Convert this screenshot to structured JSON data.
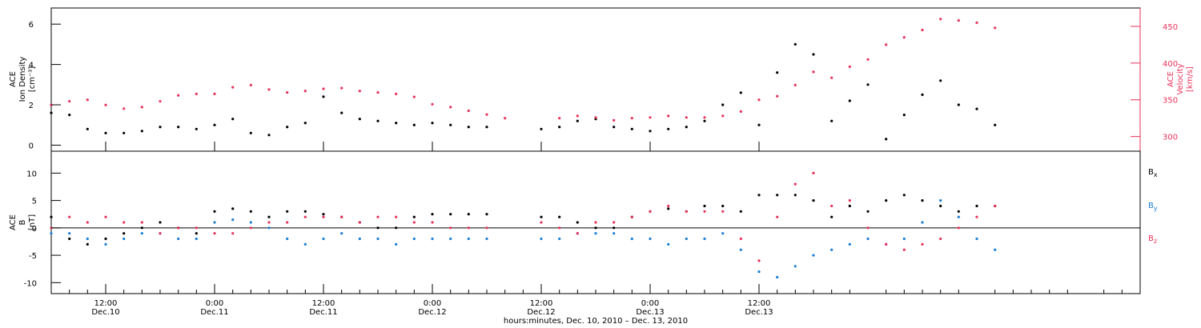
{
  "chart_data": [
    {
      "type": "scatter",
      "panel": "top",
      "ylabel_left": [
        "ACE",
        "Ion Density",
        "[cm⁻³]"
      ],
      "ylabel_right": [
        "ACE",
        "Velocity",
        "[km/s]"
      ],
      "ylim_left": [
        -0.3,
        6.8
      ],
      "yticks_left": [
        "0",
        "2",
        "4",
        "6"
      ],
      "ylim_right": [
        280,
        475
      ],
      "yticks_right": [
        "300",
        "350",
        "400",
        "450"
      ],
      "right_axis_color": "#e8325a",
      "grid": false,
      "series": [
        {
          "axis": "left",
          "color": "#000000",
          "x": [
            6,
            8,
            10,
            12,
            14,
            16,
            18,
            20,
            22,
            24,
            26,
            28,
            30,
            32,
            34,
            36,
            38,
            40,
            42,
            44,
            46,
            48,
            50,
            52,
            54,
            56,
            58,
            60,
            62,
            64,
            66,
            68,
            70,
            72,
            74,
            76,
            78,
            80,
            82,
            84,
            86,
            88,
            90,
            92,
            94,
            96,
            98,
            100,
            102,
            104,
            106,
            108,
            110
          ],
          "y": [
            1.6,
            1.5,
            0.8,
            0.6,
            0.6,
            0.7,
            0.9,
            0.9,
            0.8,
            1.0,
            1.3,
            0.6,
            0.5,
            0.9,
            1.1,
            2.4,
            1.6,
            1.3,
            1.2,
            1.1,
            1.0,
            1.1,
            1.0,
            0.9,
            0.9,
            null,
            null,
            0.8,
            0.9,
            1.2,
            1.3,
            0.9,
            0.8,
            0.7,
            0.8,
            0.9,
            1.2,
            2.0,
            2.6,
            1.0,
            3.6,
            5.0,
            4.5,
            1.2,
            2.2,
            3.0,
            0.3,
            1.5,
            2.5,
            3.2,
            2.0,
            1.8,
            1.0
          ]
        },
        {
          "axis": "right",
          "color": "#e8325a",
          "x": [
            6,
            8,
            10,
            12,
            14,
            16,
            18,
            20,
            22,
            24,
            26,
            28,
            30,
            32,
            34,
            36,
            38,
            40,
            42,
            44,
            46,
            48,
            50,
            52,
            54,
            56,
            58,
            60,
            62,
            64,
            66,
            68,
            70,
            72,
            74,
            76,
            78,
            80,
            82,
            84,
            86,
            88,
            90,
            92,
            94,
            96,
            98,
            100,
            102,
            104,
            106,
            108,
            110
          ],
          "y": [
            343,
            348,
            350,
            343,
            338,
            340,
            348,
            356,
            358,
            358,
            367,
            370,
            364,
            360,
            362,
            365,
            366,
            362,
            360,
            358,
            354,
            344,
            340,
            335,
            330,
            325,
            null,
            null,
            325,
            328,
            326,
            322,
            325,
            326,
            328,
            326,
            326,
            328,
            334,
            350,
            355,
            370,
            388,
            380,
            395,
            405,
            425,
            435,
            445,
            460,
            458,
            455,
            448
          ]
        }
      ]
    },
    {
      "type": "scatter",
      "panel": "bottom",
      "ylabel": [
        "ACE",
        "B",
        "[nT]"
      ],
      "ylim": [
        -12,
        14
      ],
      "yticks": [
        "-10",
        "-5",
        "0",
        "5",
        "10"
      ],
      "zero_line": true,
      "xlabel": "hours:minutes, Dec. 10, 2010 – Dec. 13, 2010",
      "xlim": [
        6,
        126
      ],
      "xticks": [
        {
          "h": 12,
          "time": "12:00",
          "date": "Dec.10"
        },
        {
          "h": 24,
          "time": "0:00",
          "date": "Dec.11"
        },
        {
          "h": 36,
          "time": "12:00",
          "date": "Dec.11"
        },
        {
          "h": 48,
          "time": "0:00",
          "date": "Dec.12"
        },
        {
          "h": 60,
          "time": "12:00",
          "date": "Dec.12"
        },
        {
          "h": 72,
          "time": "0:00",
          "date": "Dec.13"
        },
        {
          "h": 84,
          "time": "12:00",
          "date": "Dec.13"
        }
      ],
      "legend_position": "right",
      "series": [
        {
          "name": "B",
          "sub": "x",
          "color": "#000000",
          "x": [
            6,
            8,
            10,
            12,
            14,
            16,
            18,
            20,
            22,
            24,
            26,
            28,
            30,
            32,
            34,
            36,
            38,
            40,
            42,
            44,
            46,
            48,
            50,
            52,
            54,
            56,
            58,
            60,
            62,
            64,
            66,
            68,
            70,
            72,
            74,
            76,
            78,
            80,
            82,
            84,
            86,
            88,
            90,
            92,
            94,
            96,
            98,
            100,
            102,
            104,
            106,
            108,
            110
          ],
          "y": [
            2,
            -2,
            -3,
            -2,
            -1,
            0,
            1,
            0,
            -1,
            3,
            3.5,
            3,
            2,
            3,
            3,
            2.5,
            2,
            1,
            0,
            0,
            2,
            2.5,
            2.5,
            2.5,
            2.5,
            null,
            null,
            2,
            2,
            1,
            0,
            0,
            2,
            3,
            3.5,
            3,
            4,
            4,
            3,
            6,
            6,
            6,
            5,
            2,
            4,
            3,
            5,
            6,
            5,
            4,
            3,
            4,
            4
          ]
        },
        {
          "name": "B",
          "sub": "y",
          "color": "#1a7fd4",
          "x": [
            6,
            8,
            10,
            12,
            14,
            16,
            18,
            20,
            22,
            24,
            26,
            28,
            30,
            32,
            34,
            36,
            38,
            40,
            42,
            44,
            46,
            48,
            50,
            52,
            54,
            56,
            58,
            60,
            62,
            64,
            66,
            68,
            70,
            72,
            74,
            76,
            78,
            80,
            82,
            84,
            86,
            88,
            90,
            92,
            94,
            96,
            98,
            100,
            102,
            104,
            106,
            108,
            110
          ],
          "y": [
            -1,
            -1,
            -2,
            -3,
            -2,
            -1,
            -1,
            -2,
            -2,
            1,
            1.5,
            1,
            0,
            -2,
            -3,
            -2,
            -1,
            -2,
            -2,
            -3,
            -2,
            -2,
            -2,
            -2,
            -2,
            null,
            null,
            -2,
            -2,
            -1,
            -1,
            -1,
            -2,
            -2,
            -3,
            -2,
            -2,
            -1,
            -4,
            -8,
            -9,
            -7,
            -5,
            -4,
            -3,
            -2,
            -3,
            -2,
            1,
            5,
            2,
            -2,
            -4
          ]
        },
        {
          "name": "B",
          "sub": "z",
          "color": "#e8325a",
          "x": [
            6,
            8,
            10,
            12,
            14,
            16,
            18,
            20,
            22,
            24,
            26,
            28,
            30,
            32,
            34,
            36,
            38,
            40,
            42,
            44,
            46,
            48,
            50,
            52,
            54,
            56,
            58,
            60,
            62,
            64,
            66,
            68,
            70,
            72,
            74,
            76,
            78,
            80,
            82,
            84,
            86,
            88,
            90,
            92,
            94,
            96,
            98,
            100,
            102,
            104,
            106,
            108,
            110
          ],
          "y": [
            0,
            2,
            1,
            2,
            1,
            1,
            -1,
            0,
            0,
            -1,
            -1,
            0,
            1,
            1,
            2,
            2,
            2,
            1,
            2,
            2,
            1,
            1,
            0,
            0,
            0,
            null,
            null,
            1,
            0,
            -1,
            1,
            1,
            2,
            3,
            4,
            3,
            3,
            3,
            -2,
            -6,
            2,
            8,
            10,
            4,
            5,
            0,
            -3,
            -4,
            -3,
            -2,
            0,
            2,
            4
          ]
        }
      ]
    }
  ]
}
